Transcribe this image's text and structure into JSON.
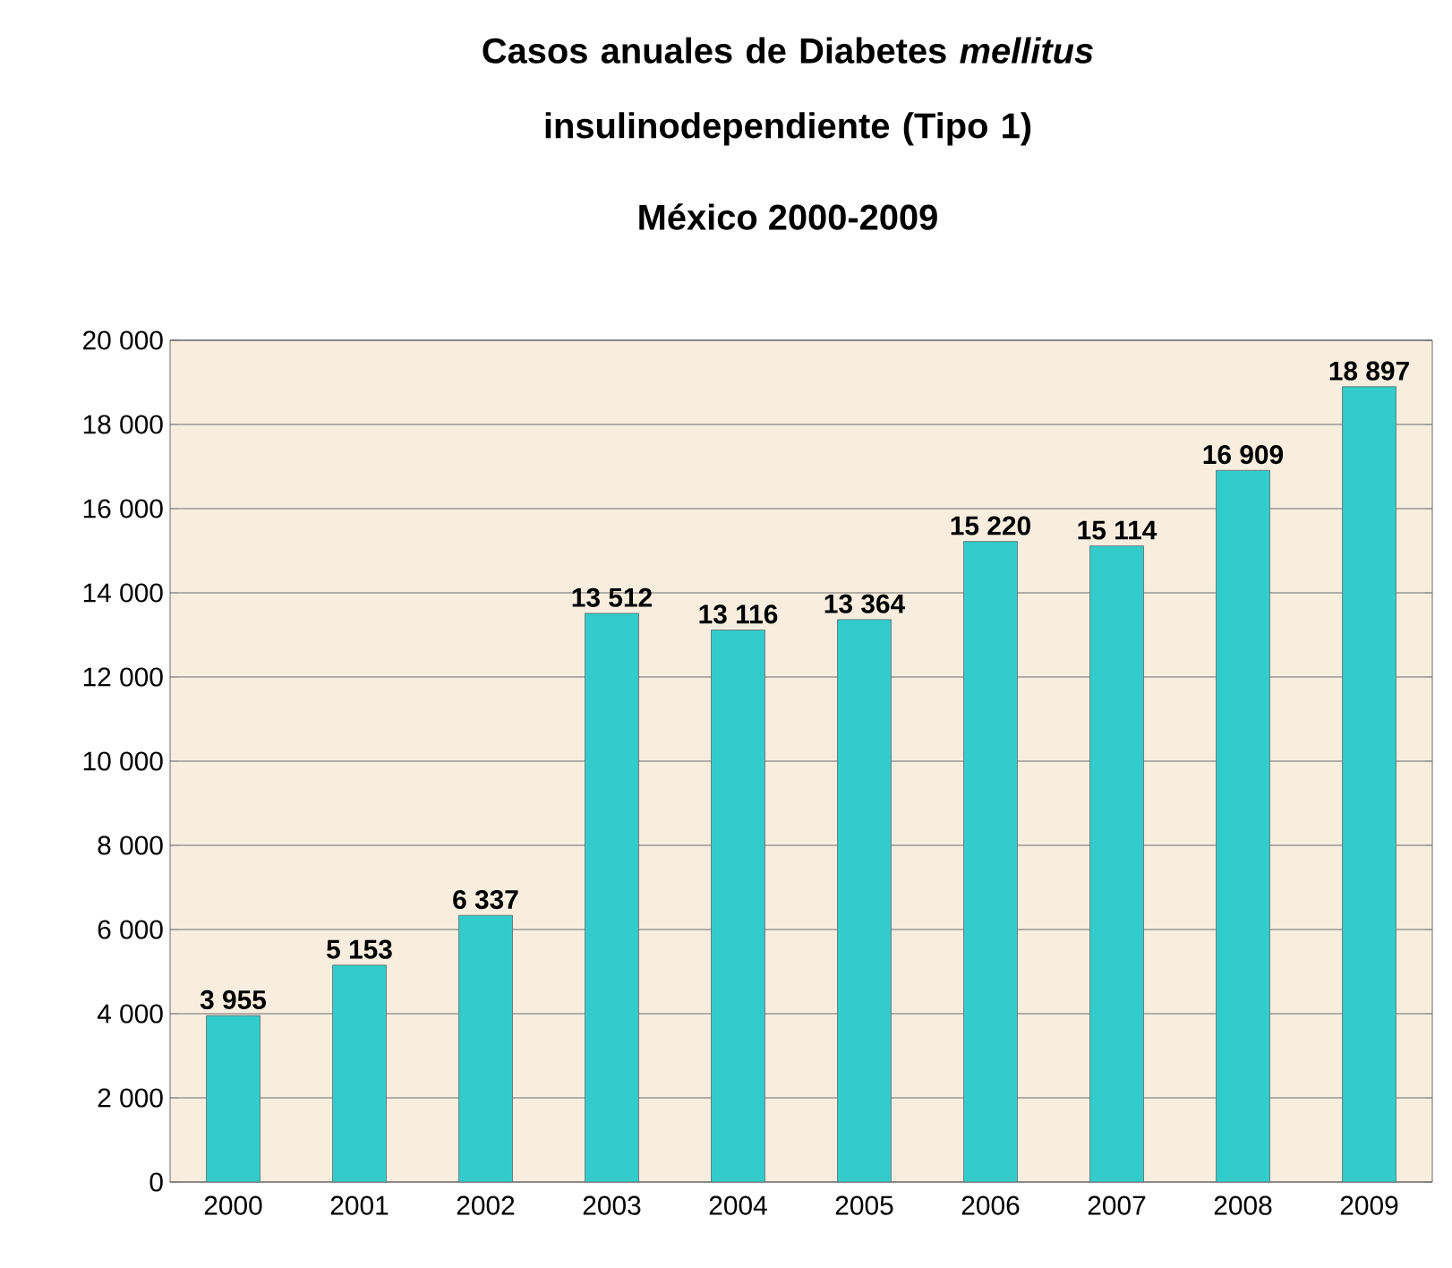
{
  "chart_data": {
    "type": "bar",
    "title": "Casos anuales de Diabetes *mellitus* insulinodependiente (Tipo 1)",
    "subtitle": "México 2000-2009",
    "categories": [
      "2000",
      "2001",
      "2002",
      "2003",
      "2004",
      "2005",
      "2006",
      "2007",
      "2008",
      "2009"
    ],
    "values": [
      3955,
      5153,
      6337,
      13512,
      13116,
      13364,
      15220,
      15114,
      16909,
      18897
    ],
    "value_labels": [
      "3 955",
      "5 153",
      "6 337",
      "13 512",
      "13 116",
      "13 364",
      "15 220",
      "15 114",
      "16 909",
      "18 897"
    ],
    "color": "#33cccc",
    "ylim": [
      0,
      20000
    ],
    "yticks": [
      0,
      {
        "value": 2000,
        "label": "2 000"
      },
      {
        "value": 4000,
        "label": "4 000"
      },
      {
        "value": 6000,
        "label": "6 000"
      },
      {
        "value": 8000,
        "label": "8 000"
      },
      {
        "value": 10000,
        "label": "10 000"
      },
      {
        "value": 12000,
        "label": "12 000"
      },
      {
        "value": 14000,
        "label": "14 000"
      },
      {
        "value": 16000,
        "label": "16 000"
      },
      {
        "value": 18000,
        "label": "18 000"
      },
      {
        "value": 20000,
        "label": "20 000"
      }
    ],
    "grid": "y"
  }
}
